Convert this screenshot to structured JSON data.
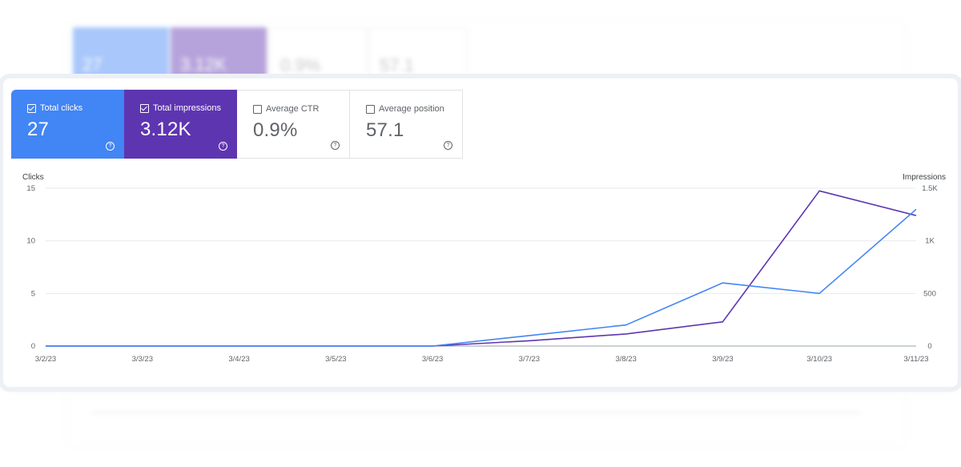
{
  "colors": {
    "clicks": "#4285f4",
    "impressions": "#5e35b1"
  },
  "background": {
    "cards": [
      {
        "value": "27"
      },
      {
        "value": "3.12K"
      },
      {
        "value": "0.9%"
      },
      {
        "value": "57.1"
      }
    ]
  },
  "metrics": [
    {
      "label": "Total clicks",
      "value": "27",
      "checked": true,
      "icon": "help-icon"
    },
    {
      "label": "Total impressions",
      "value": "3.12K",
      "checked": true,
      "icon": "help-icon"
    },
    {
      "label": "Average CTR",
      "value": "0.9%",
      "checked": false,
      "icon": "help-icon"
    },
    {
      "label": "Average position",
      "value": "57.1",
      "checked": false,
      "icon": "help-icon"
    }
  ],
  "chart_data": {
    "type": "line",
    "x": [
      "3/2/23",
      "3/3/23",
      "3/4/23",
      "3/5/23",
      "3/6/23",
      "3/7/23",
      "3/8/23",
      "3/9/23",
      "3/10/23",
      "3/11/23"
    ],
    "y_left_label": "Clicks",
    "y_right_label": "Impressions",
    "y_left_ticks": [
      "0",
      "5",
      "10",
      "15"
    ],
    "y_right_ticks": [
      "0",
      "500",
      "1K",
      "1.5K"
    ],
    "y_left_range": [
      0,
      15
    ],
    "y_right_range": [
      0,
      1500
    ],
    "grid": true,
    "series": [
      {
        "name": "Clicks",
        "axis": "left",
        "values": [
          0,
          0,
          0,
          0,
          0,
          1,
          2,
          6,
          5,
          13
        ]
      },
      {
        "name": "Impressions",
        "axis": "right",
        "values": [
          0,
          0,
          0,
          0,
          0,
          50,
          115,
          230,
          1475,
          1240
        ]
      }
    ]
  }
}
